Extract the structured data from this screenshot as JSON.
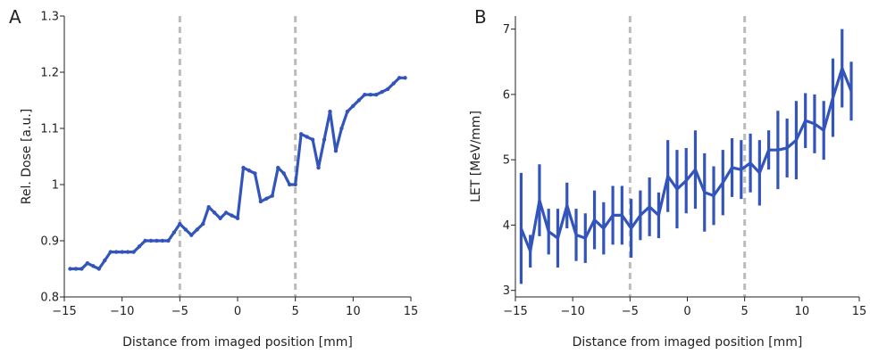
{
  "chart_data": [
    {
      "type": "line",
      "panel": "A",
      "xlabel": "Distance from imaged position [mm]",
      "ylabel": "Rel. Dose [a.u.]",
      "xlim": [
        -15,
        15
      ],
      "ylim": [
        0.8,
        1.3
      ],
      "xticks": [
        "−15",
        "−10",
        "−5",
        "0",
        "5",
        "10",
        "15"
      ],
      "yticks": [
        "0.8",
        "0.9",
        "1",
        "1.1",
        "1.2",
        "1.3"
      ],
      "xtick_values": [
        -15,
        -10,
        -5,
        0,
        5,
        10,
        15
      ],
      "ytick_values": [
        0.8,
        0.9,
        1.0,
        1.1,
        1.2,
        1.3
      ],
      "reference_lines_x": [
        -5,
        5
      ],
      "grid": false,
      "line_color": "#3355bb",
      "ref_color": "#bbbbbb",
      "x": [
        -14.5,
        -14,
        -13.5,
        -13,
        -12.5,
        -12,
        -11.5,
        -11,
        -10.5,
        -10,
        -9.5,
        -9,
        -8.5,
        -8,
        -7.5,
        -7,
        -6.5,
        -6,
        -5.5,
        -5,
        -4.5,
        -4,
        -3.5,
        -3,
        -2.5,
        -2,
        -1.5,
        -1,
        -0.5,
        0,
        0.5,
        1,
        1.5,
        2,
        2.5,
        3,
        3.5,
        4,
        4.5,
        5,
        5.5,
        6,
        6.5,
        7,
        7.5,
        8,
        8.5,
        9,
        9.5,
        10,
        10.5,
        11,
        11.5,
        12,
        12.5,
        13,
        13.5,
        14,
        14.5
      ],
      "y": [
        0.85,
        0.85,
        0.85,
        0.86,
        0.855,
        0.85,
        0.865,
        0.88,
        0.88,
        0.88,
        0.88,
        0.88,
        0.89,
        0.9,
        0.9,
        0.9,
        0.9,
        0.9,
        0.915,
        0.93,
        0.92,
        0.91,
        0.92,
        0.93,
        0.96,
        0.95,
        0.94,
        0.95,
        0.945,
        0.94,
        1.03,
        1.025,
        1.02,
        0.97,
        0.975,
        0.98,
        1.03,
        1.02,
        1.0,
        1.0,
        1.09,
        1.085,
        1.08,
        1.03,
        1.08,
        1.13,
        1.06,
        1.1,
        1.13,
        1.14,
        1.15,
        1.16,
        1.16,
        1.16,
        1.165,
        1.17,
        1.18,
        1.19,
        1.19
      ]
    },
    {
      "type": "line",
      "panel": "B",
      "xlabel": "Distance from imaged position [mm]",
      "ylabel": "LET [MeV/mm]",
      "xlim": [
        -15,
        15
      ],
      "ylim": [
        2.9,
        7.2
      ],
      "xticks": [
        "−15",
        "−10",
        "−5",
        "0",
        "5",
        "10",
        "15"
      ],
      "yticks": [
        "3",
        "4",
        "5",
        "6",
        "7"
      ],
      "xtick_values": [
        -15,
        -10,
        -5,
        0,
        5,
        10,
        15
      ],
      "ytick_values": [
        3,
        4,
        5,
        6,
        7
      ],
      "reference_lines_x": [
        -5,
        5
      ],
      "grid": false,
      "line_color": "#3355bb",
      "ref_color": "#bbbbbb",
      "x": [
        -14.5,
        -13.7,
        -12.9,
        -12.1,
        -11.3,
        -10.5,
        -9.7,
        -8.9,
        -8.1,
        -7.3,
        -6.5,
        -5.7,
        -4.9,
        -4.1,
        -3.3,
        -2.5,
        -1.7,
        -0.9,
        -0.1,
        0.7,
        1.5,
        2.3,
        3.1,
        3.9,
        4.7,
        5.5,
        6.3,
        7.1,
        7.9,
        8.7,
        9.5,
        10.3,
        11.1,
        11.9,
        12.7,
        13.5,
        14.3
      ],
      "y": [
        3.95,
        3.6,
        4.38,
        3.9,
        3.8,
        4.3,
        3.85,
        3.8,
        4.08,
        3.95,
        4.15,
        4.15,
        3.95,
        4.15,
        4.28,
        4.15,
        4.75,
        4.55,
        4.68,
        4.85,
        4.5,
        4.45,
        4.65,
        4.88,
        4.85,
        4.95,
        4.8,
        5.15,
        5.15,
        5.18,
        5.3,
        5.6,
        5.55,
        5.45,
        5.95,
        6.4,
        6.05
      ],
      "err": [
        0.85,
        0.25,
        0.55,
        0.35,
        0.45,
        0.35,
        0.4,
        0.38,
        0.45,
        0.4,
        0.45,
        0.45,
        0.45,
        0.38,
        0.45,
        0.35,
        0.55,
        0.6,
        0.5,
        0.6,
        0.6,
        0.45,
        0.5,
        0.45,
        0.45,
        0.45,
        0.5,
        0.3,
        0.6,
        0.45,
        0.6,
        0.42,
        0.45,
        0.45,
        0.6,
        0.6,
        0.45
      ]
    }
  ],
  "panels": {
    "A": {
      "letter": "A"
    },
    "B": {
      "letter": "B"
    }
  }
}
